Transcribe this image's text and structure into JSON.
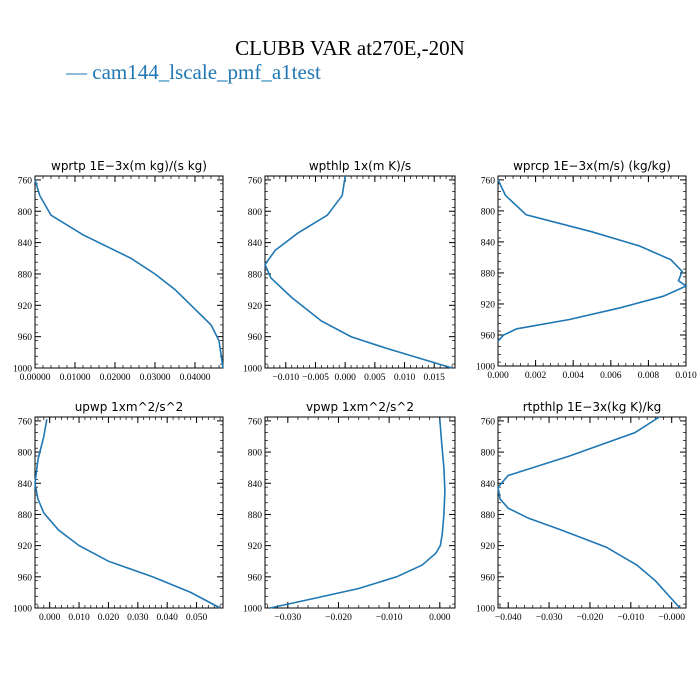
{
  "title": "CLUBB VAR at270E,-20N",
  "legend": {
    "label": "— cam144_lscale_pmf_a1test",
    "color": "#1f77b4"
  },
  "chart_data": [
    {
      "type": "line",
      "title": "wprtp  1E−3x(m kg)/(s kg)",
      "xlim": [
        0.0,
        0.047
      ],
      "ylim": [
        1000,
        755
      ],
      "xticks": [
        0.0,
        0.01,
        0.02,
        0.03,
        0.04
      ],
      "xticklabels": [
        "0.00000",
        "0.01000",
        "0.02000",
        "0.03000",
        "0.04000"
      ],
      "yticks": [
        760,
        800,
        840,
        880,
        920,
        960,
        1000
      ],
      "yticklabels": [
        "760",
        "800",
        "840",
        "880",
        "920",
        "960",
        "1000"
      ],
      "series": [
        {
          "x": [
            0.0,
            0.0012,
            0.004,
            0.012,
            0.024,
            0.03,
            0.035,
            0.04,
            0.044,
            0.046,
            0.047
          ],
          "y": [
            760,
            780,
            805,
            830,
            860,
            880,
            900,
            925,
            945,
            965,
            1000
          ]
        }
      ]
    },
    {
      "type": "line",
      "title": "wpthlp  1x(m K)/s",
      "xlim": [
        -0.0135,
        0.0185
      ],
      "ylim": [
        1000,
        755
      ],
      "xticks": [
        -0.01,
        -0.005,
        0.0,
        0.005,
        0.01,
        0.015
      ],
      "xticklabels": [
        "−0.010",
        "−0.005",
        "0.000",
        "0.005",
        "0.010",
        "0.015"
      ],
      "yticks": [
        760,
        800,
        840,
        880,
        920,
        960,
        1000
      ],
      "yticklabels": [
        "760",
        "800",
        "840",
        "880",
        "920",
        "960",
        "1000"
      ],
      "series": [
        {
          "x": [
            0.0,
            -0.0005,
            -0.003,
            -0.008,
            -0.0118,
            -0.0135,
            -0.0125,
            -0.009,
            -0.004,
            0.001,
            0.007,
            0.018
          ],
          "y": [
            755,
            780,
            805,
            828,
            850,
            868,
            885,
            910,
            940,
            960,
            975,
            1000
          ]
        }
      ]
    },
    {
      "type": "line",
      "title": "wprcp  1E−3x(m/s) (kg/kg)",
      "xlim": [
        0.0,
        0.01
      ],
      "ylim": [
        1000,
        755
      ],
      "xticks": [
        0.0,
        0.002,
        0.004,
        0.006,
        0.008,
        0.01
      ],
      "xticklabels": [
        "0.000",
        "0.002",
        "0.004",
        "0.006",
        "0.008",
        "0.010"
      ],
      "yticks": [
        760,
        800,
        840,
        880,
        920,
        960,
        1000
      ],
      "yticklabels": [
        "760",
        "800",
        "840",
        "880",
        "920",
        "960",
        "1000"
      ],
      "series": [
        {
          "x": [
            0.0,
            0.0004,
            0.0015,
            0.005,
            0.0075,
            0.0092,
            0.0098,
            0.0096,
            0.01,
            0.0088,
            0.0065,
            0.0038,
            0.001,
            0.0003,
            0.0
          ],
          "y": [
            760,
            780,
            805,
            827,
            845,
            863,
            878,
            890,
            897,
            910,
            925,
            940,
            952,
            960,
            968
          ]
        }
      ]
    },
    {
      "type": "line",
      "title": "upwp  1xm^2/s^2",
      "xlim": [
        -0.005,
        0.059
      ],
      "ylim": [
        1000,
        755
      ],
      "xticks": [
        0.0,
        0.01,
        0.02,
        0.03,
        0.04,
        0.05
      ],
      "xticklabels": [
        "0.000",
        "0.010",
        "0.020",
        "0.030",
        "0.040",
        "0.050"
      ],
      "yticks": [
        760,
        800,
        840,
        880,
        920,
        960,
        1000
      ],
      "yticklabels": [
        "760",
        "800",
        "840",
        "880",
        "920",
        "960",
        "1000"
      ],
      "series": [
        {
          "x": [
            -0.001,
            -0.002,
            -0.004,
            -0.005,
            -0.004,
            -0.002,
            0.003,
            0.01,
            0.02,
            0.035,
            0.048,
            0.058
          ],
          "y": [
            758,
            780,
            810,
            840,
            860,
            878,
            900,
            920,
            940,
            960,
            980,
            1000
          ]
        }
      ]
    },
    {
      "type": "line",
      "title": "vpwp  1xm^2/s^2",
      "xlim": [
        -0.0345,
        0.003
      ],
      "ylim": [
        1000,
        755
      ],
      "xticks": [
        -0.03,
        -0.02,
        -0.01,
        0.0
      ],
      "xticklabels": [
        "−0.030",
        "−0.020",
        "−0.010",
        "0.000"
      ],
      "yticks": [
        760,
        800,
        840,
        880,
        920,
        960,
        1000
      ],
      "yticklabels": [
        "760",
        "800",
        "840",
        "880",
        "920",
        "960",
        "1000"
      ],
      "series": [
        {
          "x": [
            0.0,
            0.0004,
            0.0008,
            0.001,
            0.0008,
            0.0005,
            0.0001,
            -0.0008,
            -0.0035,
            -0.0085,
            -0.016,
            -0.025,
            -0.0335
          ],
          "y": [
            758,
            790,
            820,
            850,
            880,
            905,
            920,
            930,
            945,
            960,
            975,
            988,
            1000
          ]
        }
      ]
    },
    {
      "type": "line",
      "title": "rtpthlp  1E−3x(kg K)/kg",
      "xlim": [
        -0.0425,
        0.0035
      ],
      "ylim": [
        1000,
        755
      ],
      "xticks": [
        -0.04,
        -0.03,
        -0.02,
        -0.01,
        0.0
      ],
      "xticklabels": [
        "−0.040",
        "−0.030",
        "−0.020",
        "−0.010",
        "−0.000"
      ],
      "yticks": [
        760,
        800,
        840,
        880,
        920,
        960,
        1000
      ],
      "yticklabels": [
        "760",
        "800",
        "840",
        "880",
        "920",
        "960",
        "1000"
      ],
      "series": [
        {
          "x": [
            -0.003,
            -0.009,
            -0.025,
            -0.04,
            -0.0425,
            -0.042,
            -0.04,
            -0.035,
            -0.027,
            -0.016,
            -0.0085,
            -0.004,
            0.002
          ],
          "y": [
            755,
            775,
            805,
            830,
            845,
            860,
            872,
            885,
            900,
            922,
            945,
            965,
            1000
          ]
        }
      ]
    }
  ]
}
